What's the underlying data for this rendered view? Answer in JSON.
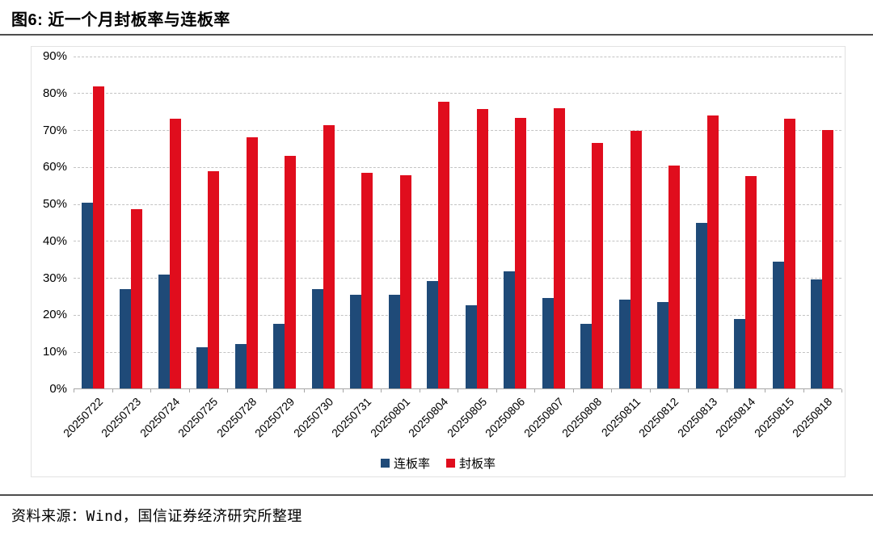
{
  "header": {
    "title": "图6: 近一个月封板率与连板率"
  },
  "footer": {
    "source": "资料来源：Wind，国信证券经济研究所整理"
  },
  "colors": {
    "series_blue": "#1f4a78",
    "series_red": "#e00d1d",
    "gridline": "#c3c3c3",
    "axis": "#a6a6a6",
    "rule": "#4d4d4d"
  },
  "chart_data": {
    "type": "bar",
    "title": "近一个月封板率与连板率",
    "categories": [
      "20250722",
      "20250723",
      "20250724",
      "20250725",
      "20250728",
      "20250729",
      "20250730",
      "20250731",
      "20250801",
      "20250804",
      "20250805",
      "20250806",
      "20250807",
      "20250808",
      "20250811",
      "20250812",
      "20250813",
      "20250814",
      "20250815",
      "20250818"
    ],
    "series": [
      {
        "name": "连板率",
        "color": "#1f4a78",
        "values": [
          50.5,
          27.2,
          31.0,
          11.4,
          12.2,
          17.7,
          27.0,
          25.5,
          25.5,
          29.3,
          22.8,
          31.8,
          24.6,
          17.8,
          24.3,
          23.5,
          45.0,
          19.0,
          34.5,
          29.8
        ]
      },
      {
        "name": "封板率",
        "color": "#e00d1d",
        "values": [
          82.0,
          48.8,
          73.1,
          59.0,
          68.1,
          63.1,
          71.4,
          58.5,
          57.9,
          77.8,
          75.8,
          73.3,
          76.0,
          66.6,
          69.8,
          60.5,
          74.0,
          57.7,
          73.2,
          70.2
        ]
      }
    ],
    "xlabel": "",
    "ylabel": "",
    "ylim": [
      0,
      90
    ],
    "yticks": [
      "0%",
      "10%",
      "20%",
      "30%",
      "40%",
      "50%",
      "60%",
      "70%",
      "80%",
      "90%"
    ],
    "grid": true,
    "gridstyle": "dashed",
    "legend_position": "bottom-center"
  }
}
